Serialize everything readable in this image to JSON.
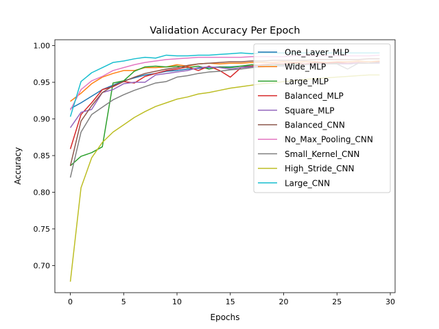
{
  "chart_data": {
    "type": "line",
    "title": "Validation Accuracy Per Epoch",
    "xlabel": "Epochs",
    "ylabel": "Accuracy",
    "xlim": [
      -1.45,
      30.45
    ],
    "ylim": [
      0.663,
      1.008
    ],
    "x_ticks": [
      0,
      5,
      10,
      15,
      20,
      25,
      30
    ],
    "y_ticks": [
      0.7,
      0.75,
      0.8,
      0.85,
      0.9,
      0.95,
      1.0
    ],
    "x_tick_labels": [
      "0",
      "5",
      "10",
      "15",
      "20",
      "25",
      "30"
    ],
    "y_tick_labels": [
      "0.70",
      "0.75",
      "0.80",
      "0.85",
      "0.90",
      "0.95",
      "1.00"
    ],
    "grid": false,
    "legend_position": "upper right",
    "x": [
      0,
      1,
      2,
      3,
      4,
      5,
      6,
      7,
      8,
      9,
      10,
      11,
      12,
      13,
      14,
      15,
      16,
      17,
      18,
      19,
      20,
      21,
      22,
      23,
      24,
      25,
      26,
      27,
      28,
      29
    ],
    "series": [
      {
        "name": "One_Layer_MLP",
        "color": "#1f77b4",
        "values": [
          0.914,
          0.922,
          0.931,
          0.94,
          0.946,
          0.952,
          0.956,
          0.96,
          0.962,
          0.965,
          0.966,
          0.968,
          0.969,
          0.97,
          0.971,
          0.971,
          0.972,
          0.972,
          0.973,
          0.973,
          0.974,
          0.974,
          0.974,
          0.975,
          0.975,
          0.975,
          0.975,
          0.976,
          0.976,
          0.976
        ]
      },
      {
        "name": "Wide_MLP",
        "color": "#ff7f0e",
        "values": [
          0.924,
          0.935,
          0.948,
          0.957,
          0.962,
          0.966,
          0.966,
          0.97,
          0.97,
          0.971,
          0.974,
          0.972,
          0.975,
          0.976,
          0.975,
          0.976,
          0.976,
          0.977,
          0.977,
          0.977,
          0.978,
          0.977,
          0.978,
          0.978,
          0.977,
          0.978,
          0.978,
          0.979,
          0.978,
          0.979
        ]
      },
      {
        "name": "Large_MLP",
        "color": "#2ca02c",
        "values": [
          0.836,
          0.849,
          0.854,
          0.862,
          0.949,
          0.952,
          0.965,
          0.971,
          0.972,
          0.971,
          0.972,
          0.97,
          0.972,
          0.968,
          0.971,
          0.97,
          0.972,
          0.974,
          0.973,
          0.973,
          0.974,
          0.975,
          0.974,
          0.976,
          0.975,
          0.976,
          0.975,
          0.976,
          0.976,
          0.977
        ]
      },
      {
        "name": "Balanced_MLP",
        "color": "#d62728",
        "values": [
          0.859,
          0.906,
          0.922,
          0.94,
          0.944,
          0.951,
          0.949,
          0.958,
          0.962,
          0.966,
          0.968,
          0.971,
          0.966,
          0.972,
          0.966,
          0.957,
          0.97,
          0.972,
          0.974,
          0.975,
          0.975,
          0.976,
          0.975,
          0.977,
          0.976,
          0.977,
          0.976,
          0.977,
          0.976,
          0.978
        ]
      },
      {
        "name": "Square_MLP",
        "color": "#9467bd",
        "values": [
          0.888,
          0.909,
          0.913,
          0.936,
          0.94,
          0.948,
          0.95,
          0.95,
          0.96,
          0.962,
          0.964,
          0.966,
          0.97,
          0.971,
          0.97,
          0.968,
          0.97,
          0.971,
          0.972,
          0.972,
          0.973,
          0.973,
          0.974,
          0.974,
          0.975,
          0.975,
          0.975,
          0.976,
          0.976,
          0.976
        ]
      },
      {
        "name": "Balanced_CNN",
        "color": "#8c564b",
        "values": [
          0.836,
          0.897,
          0.918,
          0.936,
          0.945,
          0.951,
          0.957,
          0.962,
          0.965,
          0.968,
          0.97,
          0.973,
          0.975,
          0.976,
          0.977,
          0.978,
          0.978,
          0.979,
          0.979,
          0.98,
          0.98,
          0.98,
          0.98,
          0.981,
          0.981,
          0.981,
          0.981,
          0.981,
          0.982,
          0.982
        ]
      },
      {
        "name": "No_Max_Pooling_CNN",
        "color": "#e377c2",
        "values": [
          0.912,
          0.94,
          0.952,
          0.958,
          0.966,
          0.97,
          0.974,
          0.977,
          0.979,
          0.981,
          0.982,
          0.983,
          0.984,
          0.984,
          0.984,
          0.984,
          0.984,
          0.985,
          0.985,
          0.985,
          0.985,
          0.986,
          0.986,
          0.986,
          0.986,
          0.986,
          0.986,
          0.986,
          0.986,
          0.987
        ]
      },
      {
        "name": "Small_Kernel_CNN",
        "color": "#7f7f7f",
        "values": [
          0.82,
          0.882,
          0.906,
          0.916,
          0.926,
          0.933,
          0.939,
          0.944,
          0.949,
          0.951,
          0.957,
          0.959,
          0.962,
          0.964,
          0.965,
          0.967,
          0.968,
          0.97,
          0.971,
          0.972,
          0.972,
          0.973,
          0.974,
          0.975,
          0.975,
          0.975,
          0.968,
          0.976,
          0.976,
          0.977
        ]
      },
      {
        "name": "High_Stride_CNN",
        "color": "#bcbd22",
        "values": [
          0.678,
          0.806,
          0.847,
          0.868,
          0.882,
          0.892,
          0.902,
          0.91,
          0.917,
          0.922,
          0.927,
          0.93,
          0.934,
          0.936,
          0.939,
          0.942,
          0.944,
          0.946,
          0.948,
          0.949,
          0.951,
          0.952,
          0.954,
          0.955,
          0.956,
          0.957,
          0.958,
          0.959,
          0.96,
          0.96
        ]
      },
      {
        "name": "Large_CNN",
        "color": "#17becf",
        "values": [
          0.903,
          0.951,
          0.963,
          0.97,
          0.977,
          0.979,
          0.982,
          0.984,
          0.983,
          0.987,
          0.986,
          0.986,
          0.987,
          0.987,
          0.988,
          0.989,
          0.99,
          0.989,
          0.99,
          0.99,
          0.99,
          0.99,
          0.99,
          0.99,
          0.99,
          0.99,
          0.99,
          0.99,
          0.99,
          0.99
        ]
      }
    ]
  }
}
